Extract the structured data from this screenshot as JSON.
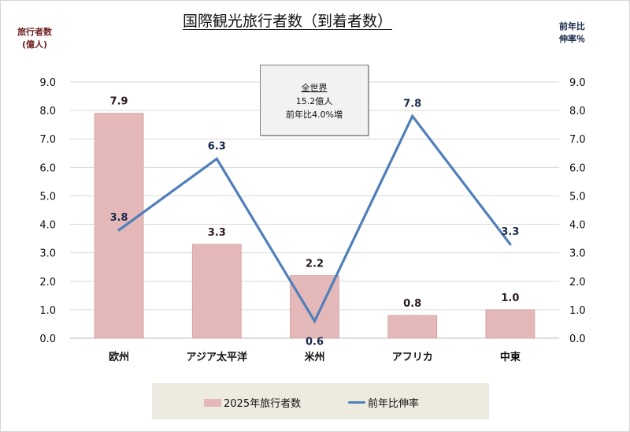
{
  "chart_data": {
    "type": "bar+line",
    "title": "国際観光旅行者数（到着者数）",
    "categories": [
      "欧州",
      "アジア太平洋",
      "米州",
      "アフリカ",
      "中東"
    ],
    "series": [
      {
        "name": "2025年旅行者数",
        "type": "bar",
        "axis": "left",
        "values": [
          7.9,
          3.3,
          2.2,
          0.8,
          1.0
        ],
        "labels": [
          "7.9",
          "3.3",
          "2.2",
          "0.8",
          "1.0"
        ],
        "color": "#e4b8b8"
      },
      {
        "name": "前年比伸率",
        "type": "line",
        "axis": "right",
        "values": [
          3.8,
          6.3,
          0.6,
          7.8,
          3.3
        ],
        "labels": [
          "3.8",
          "6.3",
          "0.6",
          "7.8",
          "3.3"
        ],
        "color": "#4f7fba"
      }
    ],
    "ylabel_left": [
      "旅行者数",
      "(億人)"
    ],
    "ylabel_right": [
      "前年比",
      "伸率％"
    ],
    "ylim_left": [
      0,
      9
    ],
    "ylim_right": [
      0,
      9
    ],
    "yticks_left": [
      "0.0",
      "1.0",
      "2.0",
      "3.0",
      "4.0",
      "5.0",
      "6.0",
      "7.0",
      "8.0",
      "9.0"
    ],
    "yticks_right": [
      "0.0",
      "1.0",
      "2.0",
      "3.0",
      "4.0",
      "5.0",
      "6.0",
      "7.0",
      "8.0",
      "9.0"
    ],
    "grid": true,
    "legend_position": "bottom",
    "annotation": {
      "lines": [
        "全世界",
        "15.2億人",
        "前年比4.0%増"
      ]
    }
  },
  "colors": {
    "bar": "#e4b8b8",
    "line": "#4f7fba",
    "grid": "#d9d9d9",
    "legend_bg": "#edeae0"
  }
}
